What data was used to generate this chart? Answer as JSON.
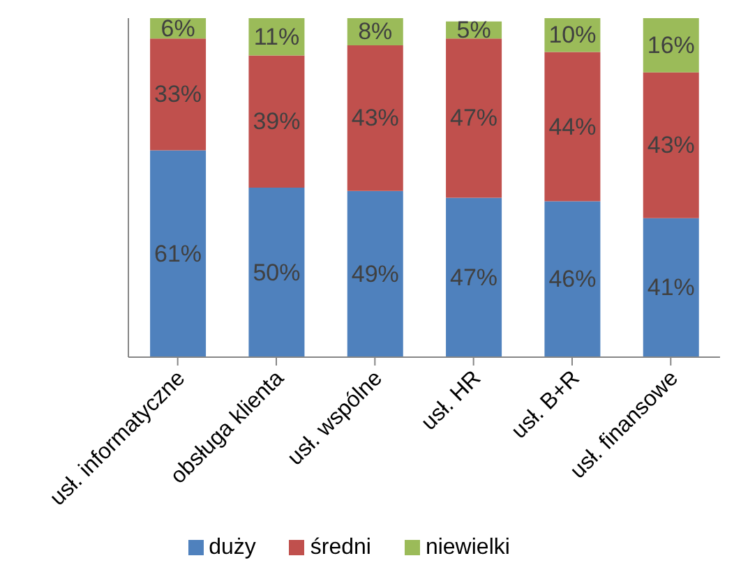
{
  "chart_data": {
    "type": "bar",
    "stacked": true,
    "categories": [
      "usł. informatyczne",
      "obsługa klienta",
      "usł. wspólne",
      "usł. HR",
      "usł. B+R",
      "usł. finansowe"
    ],
    "series": [
      {
        "name": "duży",
        "color": "#4f81bd",
        "values": [
          61,
          50,
          49,
          47,
          46,
          41
        ],
        "value_labels": [
          "61%",
          "50%",
          "49%",
          "47%",
          "46%",
          "41%"
        ]
      },
      {
        "name": "średni",
        "color": "#c0504d",
        "values": [
          33,
          39,
          43,
          47,
          44,
          43
        ],
        "value_labels": [
          "33%",
          "39%",
          "43%",
          "47%",
          "44%",
          "43%"
        ]
      },
      {
        "name": "niewielki",
        "color": "#9bbb59",
        "values": [
          6,
          11,
          8,
          5,
          10,
          16
        ],
        "value_labels": [
          "6%",
          "11%",
          "8%",
          "5%",
          "10%",
          "16%"
        ]
      }
    ],
    "grid": false,
    "legend": "bottom"
  }
}
